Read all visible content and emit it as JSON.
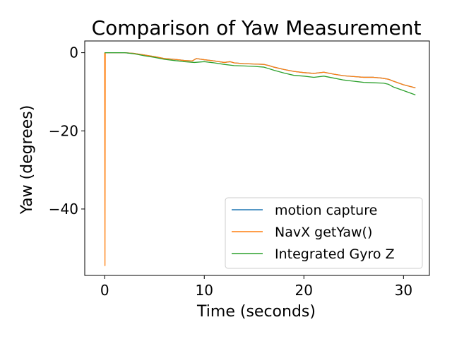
{
  "chart_data": {
    "type": "line",
    "title": "Comparison of Yaw Measurement",
    "xlabel": "Time (seconds)",
    "ylabel": "Yaw (degrees)",
    "xlim": [
      -2.0,
      32.6
    ],
    "ylim": [
      -57.0,
      3.0
    ],
    "xticks": [
      0,
      10,
      20,
      30
    ],
    "yticks": [
      0,
      -20,
      -40
    ],
    "xtick_labels": [
      "0",
      "10",
      "20",
      "30"
    ],
    "ytick_labels": [
      "0",
      "−20",
      "−40"
    ],
    "grid": false,
    "legend_position": "lower-right",
    "series": [
      {
        "name": "motion capture",
        "color": "#1f77b4",
        "x": [
          0,
          0.5,
          2,
          3,
          4,
          5,
          6,
          7,
          8,
          8.8,
          9.2,
          10,
          11,
          12,
          12.6,
          13,
          14,
          15,
          16,
          16.5,
          17,
          18,
          19,
          20,
          21,
          22,
          23,
          24,
          25,
          26,
          27,
          27.8,
          28.5,
          29,
          30,
          31.2
        ],
        "y": [
          0,
          0,
          0,
          -0.2,
          -0.6,
          -1.0,
          -1.5,
          -1.7,
          -2.0,
          -2.1,
          -1.5,
          -1.8,
          -2.1,
          -2.5,
          -2.3,
          -2.6,
          -2.8,
          -2.9,
          -3.0,
          -3.3,
          -3.7,
          -4.3,
          -4.8,
          -5.1,
          -5.3,
          -5.0,
          -5.5,
          -5.9,
          -6.1,
          -6.3,
          -6.3,
          -6.5,
          -6.8,
          -7.3,
          -8.2,
          -9.0
        ]
      },
      {
        "name": "NavX getYaw()",
        "color": "#ff7f0e",
        "x": [
          0,
          0.03,
          0.06,
          0.5,
          2,
          3,
          4,
          5,
          6,
          7,
          8,
          8.8,
          9.2,
          10,
          11,
          12,
          12.6,
          13,
          14,
          15,
          16,
          16.5,
          17,
          18,
          19,
          20,
          21,
          22,
          23,
          24,
          25,
          26,
          27,
          27.8,
          28.5,
          29,
          30,
          31.2
        ],
        "y": [
          0,
          -54.5,
          0,
          0,
          0,
          -0.2,
          -0.6,
          -1.0,
          -1.5,
          -1.7,
          -2.0,
          -2.1,
          -1.5,
          -1.8,
          -2.1,
          -2.5,
          -2.3,
          -2.6,
          -2.8,
          -2.9,
          -3.0,
          -3.3,
          -3.7,
          -4.3,
          -4.8,
          -5.1,
          -5.3,
          -5.0,
          -5.5,
          -5.9,
          -6.1,
          -6.3,
          -6.3,
          -6.5,
          -6.8,
          -7.3,
          -8.2,
          -9.0
        ]
      },
      {
        "name": "Integrated Gyro Z",
        "color": "#2ca02c",
        "x": [
          0,
          0.5,
          2,
          3,
          4,
          5,
          6,
          7,
          8,
          9,
          10,
          11,
          12,
          13,
          14,
          15,
          16,
          17,
          18,
          19,
          20,
          21,
          22,
          23,
          24,
          25,
          26,
          27,
          28,
          28.5,
          29,
          30,
          31.2
        ],
        "y": [
          0,
          0,
          0,
          -0.3,
          -0.8,
          -1.2,
          -1.7,
          -2.0,
          -2.3,
          -2.5,
          -2.3,
          -2.6,
          -3.0,
          -3.3,
          -3.4,
          -3.5,
          -3.7,
          -4.5,
          -5.2,
          -5.8,
          -6.0,
          -6.3,
          -6.0,
          -6.5,
          -7.0,
          -7.3,
          -7.6,
          -7.7,
          -7.8,
          -8.1,
          -8.8,
          -9.7,
          -10.8
        ]
      }
    ]
  }
}
